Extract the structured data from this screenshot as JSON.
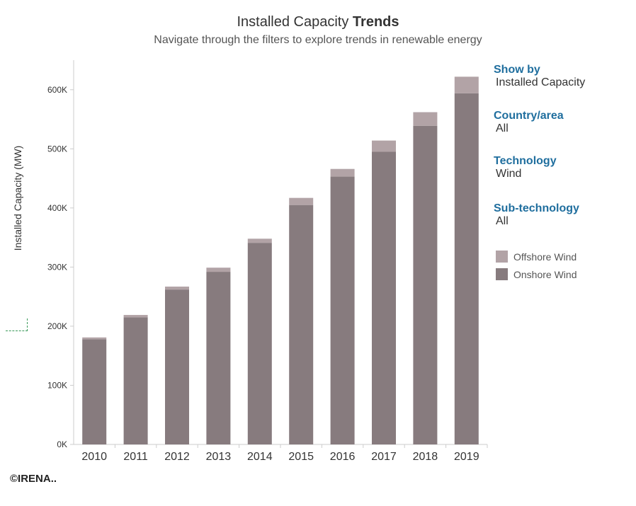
{
  "header": {
    "title_main": "Installed Capacity ",
    "title_bold": "Trends",
    "subtitle": "Navigate through the filters to explore trends in renewable energy"
  },
  "filters": [
    {
      "title": "Show by",
      "value": "Installed Capacity"
    },
    {
      "title": "Country/area",
      "value": "All"
    },
    {
      "title": "Technology",
      "value": "Wind"
    },
    {
      "title": "Sub-technology",
      "value": "All"
    }
  ],
  "footer": {
    "text": "©IRENA.."
  },
  "colors": {
    "onshore": "#877b7e",
    "offshore": "#b2a3a6",
    "axis": "#cccccc",
    "tick_text": "#333333"
  },
  "chart_data": {
    "type": "bar",
    "stacked": true,
    "categories": [
      "2010",
      "2011",
      "2012",
      "2013",
      "2014",
      "2015",
      "2016",
      "2017",
      "2018",
      "2019"
    ],
    "series": [
      {
        "name": "Onshore Wind",
        "values": [
          178000,
          215000,
          262000,
          292000,
          341000,
          405000,
          453000,
          495000,
          539000,
          594000
        ]
      },
      {
        "name": "Offshore Wind",
        "values": [
          3000,
          4000,
          5000,
          7000,
          7000,
          12000,
          13000,
          19000,
          23000,
          28000
        ]
      }
    ],
    "ylabel": "Installed Capacity (MW)",
    "ylim": [
      0,
      650000
    ],
    "yticks": [
      0,
      100000,
      200000,
      300000,
      400000,
      500000,
      600000
    ],
    "ytick_labels": [
      "0K",
      "100K",
      "200K",
      "300K",
      "400K",
      "500K",
      "600K"
    ],
    "legend_placement": "right",
    "grid": false
  }
}
